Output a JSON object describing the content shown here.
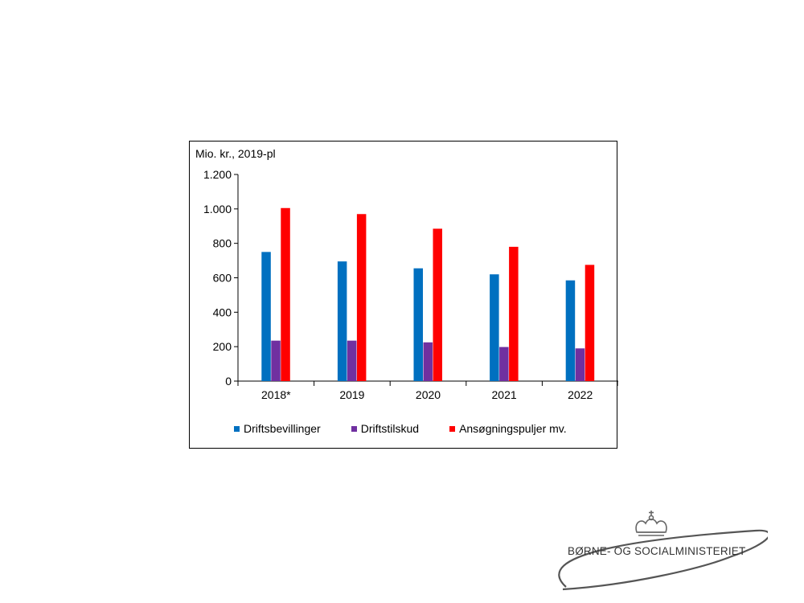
{
  "chart_data": {
    "type": "bar",
    "unit_label": "Mio. kr., 2019-pl",
    "categories": [
      "2018*",
      "2019",
      "2020",
      "2021",
      "2022"
    ],
    "series": [
      {
        "name": "Driftsbevillinger",
        "color": "#0070C0",
        "values": [
          750,
          695,
          655,
          620,
          585
        ]
      },
      {
        "name": "Driftstilskud",
        "color": "#7030A0",
        "values": [
          235,
          235,
          225,
          198,
          190
        ]
      },
      {
        "name": "Ansøgningspuljer mv.",
        "color": "#FF0000",
        "values": [
          1005,
          970,
          885,
          780,
          675
        ]
      }
    ],
    "ylim": [
      0,
      1200
    ],
    "yticks": [
      0,
      200,
      400,
      600,
      800,
      1000,
      1200
    ],
    "ytick_labels": [
      "0",
      "200",
      "400",
      "600",
      "800",
      "1.000",
      "1.200"
    ],
    "legend_position": "bottom",
    "grid": false
  },
  "logo": {
    "text": "BØRNE- OG SOCIALMINISTERIET",
    "icon": "crown-icon"
  }
}
